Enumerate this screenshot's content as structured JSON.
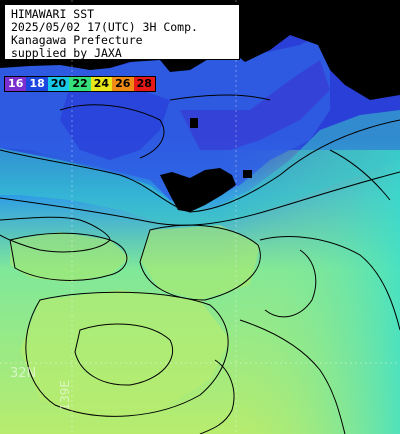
{
  "header": {
    "lines": [
      "HIMAWARI SST",
      "2025/05/02 17(UTC) 3H Comp.",
      "Kanagawa Prefecture",
      "supplied by JAXA"
    ]
  },
  "legend": {
    "items": [
      {
        "label": "16",
        "color": "#7b2fd0",
        "text_color": "#ffffff"
      },
      {
        "label": "18",
        "color": "#1c46e0",
        "text_color": "#ffffff"
      },
      {
        "label": "20",
        "color": "#19c8e8",
        "text_color": "#000000"
      },
      {
        "label": "22",
        "color": "#35e07a",
        "text_color": "#000000"
      },
      {
        "label": "24",
        "color": "#e8e51a",
        "text_color": "#000000"
      },
      {
        "label": "26",
        "color": "#f08a14",
        "text_color": "#000000"
      },
      {
        "label": "28",
        "color": "#e81818",
        "text_color": "#000000"
      }
    ]
  },
  "grid_labels": {
    "lat": "32N",
    "lon": "139E"
  },
  "colors": {
    "land": "#000000",
    "cold_water": "#2a3fd8",
    "mid_water": "#2f9de6",
    "warm_water": "#7fe89a",
    "warmest_water": "#b8ec6e",
    "contour": "#000000",
    "grid": "#ffffff"
  }
}
